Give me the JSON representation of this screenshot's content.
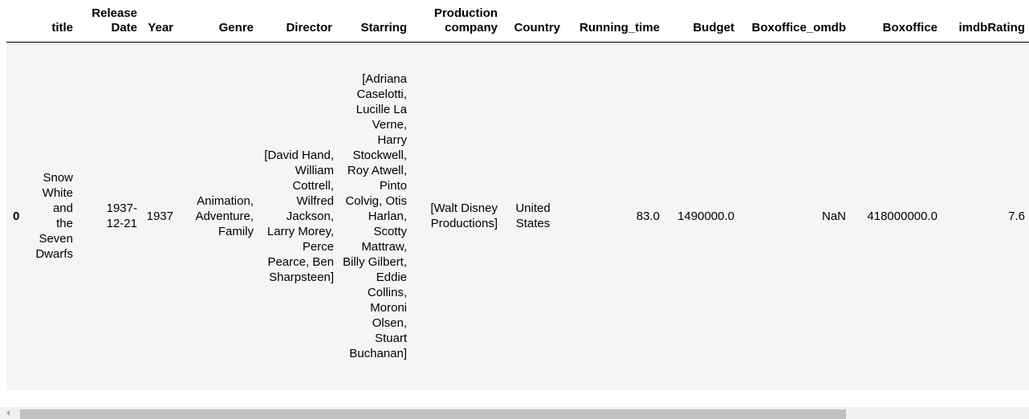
{
  "table": {
    "columns": [
      "",
      "title",
      "Release Date",
      "Year",
      "Genre",
      "Director",
      "Starring",
      "Production company",
      "Country",
      "Running_time",
      "Budget",
      "Boxoffice_omdb",
      "Boxoffice",
      "imdbRating"
    ],
    "rows": [
      {
        "index": "0",
        "title": "Snow White and the Seven Dwarfs",
        "release_date": "1937-12-21",
        "year": "1937",
        "genre": "Animation, Adventure, Family",
        "director": "[David Hand, William Cottrell, Wilfred Jackson, Larry Morey, Perce Pearce, Ben Sharpsteen]",
        "starring": "[Adriana Caselotti, Lucille La Verne, Harry Stockwell, Roy Atwell, Pinto Colvig, Otis Harlan, Scotty Mattraw, Billy Gilbert, Eddie Collins, Moroni Olsen, Stuart Buchanan]",
        "production_company": "[Walt Disney Productions]",
        "country": "United States",
        "running_time": "83.0",
        "budget": "1490000.0",
        "boxoffice_omdb": "NaN",
        "boxoffice": "418000000.0",
        "imdb_rating": "7.6"
      }
    ]
  },
  "scrollbar": {
    "orientation": "horizontal",
    "arrow_icon": "left-arrow-icon"
  }
}
